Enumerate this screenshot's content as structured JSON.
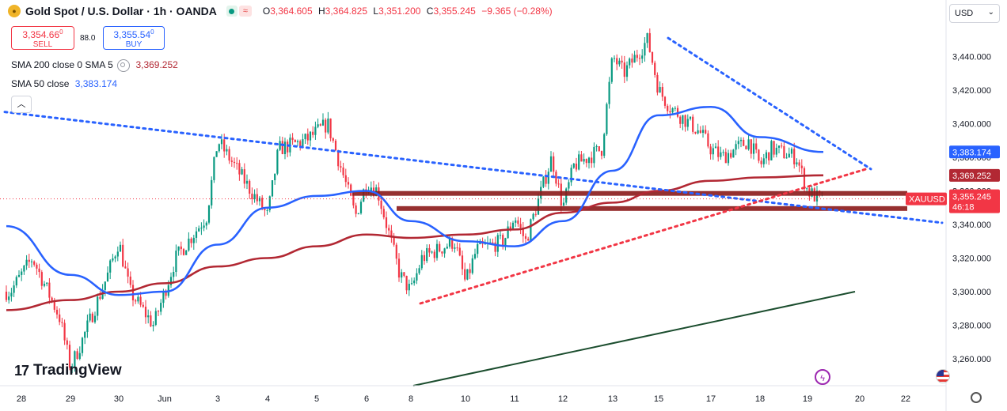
{
  "header": {
    "symbol_logo": "gold-coin-icon",
    "title": "Gold Spot / U.S. Dollar · 1h · OANDA",
    "ohlc": [
      {
        "label": "O",
        "value": "3,364.605"
      },
      {
        "label": "H",
        "value": "3,364.825"
      },
      {
        "label": "L",
        "value": "3,351.200"
      },
      {
        "label": "C",
        "value": "3,355.245"
      }
    ],
    "change": "−9.365 (−0.28%)"
  },
  "trade": {
    "sell_price": "3,354.66",
    "sell_price_sup": "0",
    "sell_label": "SELL",
    "spread": "88.0",
    "buy_price": "3,355.54",
    "buy_price_sup": "0",
    "buy_label": "BUY"
  },
  "indicators": {
    "sma200_label": "SMA 200 close 0 SMA 5",
    "sma200_value": "3,369.252",
    "sma50_label": "SMA 50 close",
    "sma50_value": "3,383.174"
  },
  "currency": "USD",
  "logo_text": "TradingView",
  "colors": {
    "up": "#089981",
    "down": "#f23645",
    "sma50": "#2962ff",
    "sma200": "#b22833",
    "trendline_dotted": "#2962ff",
    "support_dotted": "#f23645",
    "long_trend": "#1b4d2e",
    "zone": "#8b1a1a"
  },
  "chart_data": {
    "type": "candlestick",
    "title": "Gold Spot / U.S. Dollar · 1h · OANDA",
    "y_ticks": [
      "3,440.000",
      "3,420.000",
      "3,400.000",
      "3,380.000",
      "3,360.000",
      "3,340.000",
      "3,320.000",
      "3,300.000",
      "3,280.000",
      "3,260.000"
    ],
    "y_tick_values": [
      3440,
      3420,
      3400,
      3380,
      3360,
      3340,
      3320,
      3300,
      3280,
      3260
    ],
    "x_ticks": [
      "28",
      "29",
      "30",
      "Jun",
      "3",
      "4",
      "5",
      "6",
      "8",
      "10",
      "11",
      "12",
      "13",
      "15",
      "17",
      "18",
      "19",
      "20",
      "22"
    ],
    "price_labels": [
      {
        "text": "3,383.174",
        "value": 3383.174,
        "color": "#2962ff"
      },
      {
        "text": "3,369.252",
        "value": 3369.252,
        "color": "#b22833"
      },
      {
        "text": "XAUUSD",
        "value": 3355.245,
        "color": "#f23645"
      },
      {
        "text": "3,355.245",
        "value": 3355.245,
        "color": "#f23645"
      },
      {
        "text": "46:18",
        "value": 3355.245,
        "color": "#f23645"
      }
    ],
    "last_price": 3355.245,
    "candle_path": [
      [
        "28",
        3300
      ],
      [
        "28",
        3320
      ],
      [
        "29",
        3285
      ],
      [
        "29",
        3255
      ],
      [
        "29",
        3270
      ],
      [
        "30",
        3310
      ],
      [
        "30",
        3330
      ],
      [
        "30",
        3300
      ],
      [
        "Jun",
        3280
      ],
      [
        "Jun",
        3300
      ],
      [
        "Jun",
        3320
      ],
      [
        "3",
        3345
      ],
      [
        "3",
        3390
      ],
      [
        "3",
        3380
      ],
      [
        "4",
        3355
      ],
      [
        "4",
        3345
      ],
      [
        "4",
        3385
      ],
      [
        "5",
        3390
      ],
      [
        "5",
        3395
      ],
      [
        "5",
        3400
      ],
      [
        "6",
        3345
      ],
      [
        "6",
        3365
      ],
      [
        "6",
        3360
      ],
      [
        "8",
        3310
      ],
      [
        "8",
        3300
      ],
      [
        "8",
        3320
      ],
      [
        "10",
        3330
      ],
      [
        "10",
        3305
      ],
      [
        "10",
        3325
      ],
      [
        "11",
        3330
      ],
      [
        "11",
        3345
      ],
      [
        "11",
        3330
      ],
      [
        "12",
        3380
      ],
      [
        "12",
        3350
      ],
      [
        "12",
        3375
      ],
      [
        "13",
        3385
      ],
      [
        "13",
        3440
      ],
      [
        "13",
        3430
      ],
      [
        "15",
        3450
      ],
      [
        "15",
        3420
      ],
      [
        "15",
        3410
      ],
      [
        "17",
        3395
      ],
      [
        "17",
        3385
      ],
      [
        "17",
        3380
      ],
      [
        "18",
        3390
      ],
      [
        "18",
        3375
      ],
      [
        "18",
        3385
      ],
      [
        "19",
        3380
      ],
      [
        "19",
        3360
      ],
      [
        "19",
        3355.245
      ]
    ],
    "sma50": [
      [
        "28",
        3339
      ],
      [
        "29",
        3310
      ],
      [
        "30",
        3298
      ],
      [
        "Jun",
        3300
      ],
      [
        "3",
        3328
      ],
      [
        "4",
        3350
      ],
      [
        "5",
        3357
      ],
      [
        "6",
        3360
      ],
      [
        "8",
        3342
      ],
      [
        "10",
        3330
      ],
      [
        "11",
        3327
      ],
      [
        "12",
        3342
      ],
      [
        "13",
        3372
      ],
      [
        "15",
        3405
      ],
      [
        "17",
        3410
      ],
      [
        "18",
        3392
      ],
      [
        "19",
        3383.174
      ]
    ],
    "sma200": [
      [
        "28",
        3289
      ],
      [
        "29",
        3295
      ],
      [
        "30",
        3300
      ],
      [
        "Jun",
        3305
      ],
      [
        "3",
        3315
      ],
      [
        "4",
        3320
      ],
      [
        "5",
        3327
      ],
      [
        "6",
        3334
      ],
      [
        "8",
        3332
      ],
      [
        "10",
        3334
      ],
      [
        "11",
        3337
      ],
      [
        "12",
        3347
      ],
      [
        "13",
        3353
      ],
      [
        "15",
        3360
      ],
      [
        "17",
        3366
      ],
      [
        "18",
        3368
      ],
      [
        "19",
        3369.252
      ]
    ],
    "trendlines": [
      {
        "style": "dotted",
        "color": "#2962ff",
        "from": [
          "28",
          3407
        ],
        "to": [
          "22",
          3341
        ]
      },
      {
        "style": "dotted",
        "color": "#2962ff",
        "from": [
          "15",
          3451
        ],
        "to": [
          "20",
          3373
        ]
      },
      {
        "style": "dotted",
        "color": "#f23645",
        "from": [
          "8",
          3293
        ],
        "to": [
          "20",
          3373
        ]
      },
      {
        "style": "solid",
        "color": "#1b4d2e",
        "from": [
          "8",
          3244
        ],
        "to": [
          "20",
          3300
        ]
      }
    ],
    "zones": [
      {
        "value": 3358.5,
        "from": "6",
        "to": "22"
      },
      {
        "value": 3349.5,
        "from": "8",
        "to": "22"
      }
    ],
    "grid": false
  }
}
